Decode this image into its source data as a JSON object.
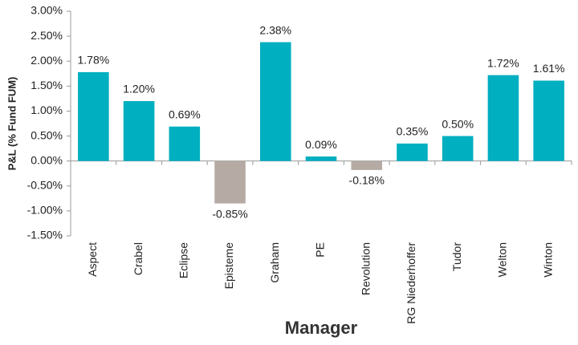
{
  "chart_data": {
    "type": "bar",
    "x_label": "Manager",
    "y_label": "P&L (% Fund FUM)",
    "categories": [
      "Aspect",
      "Crabel",
      "Eclipse",
      "Episteme",
      "Graham",
      "PE",
      "Revolution",
      "RG Niederhoffer",
      "Tudor",
      "Welton",
      "Winton"
    ],
    "values": [
      1.78,
      1.2,
      0.69,
      -0.85,
      2.38,
      0.09,
      -0.18,
      0.35,
      0.5,
      1.72,
      1.61
    ],
    "value_labels": [
      "1.78%",
      "1.20%",
      "0.69%",
      "-0.85%",
      "2.38%",
      "0.09%",
      "-0.18%",
      "0.35%",
      "0.50%",
      "1.72%",
      "1.61%"
    ],
    "color": "#00afc0",
    "negative_color": "#b5aba4",
    "ylim": [
      -1.5,
      3.0
    ],
    "yticks": [
      {
        "value": -1.5,
        "label": "-1.50%"
      },
      {
        "value": -1.0,
        "label": "-1.00%"
      },
      {
        "value": -0.5,
        "label": "-0.50%"
      },
      {
        "value": 0,
        "label": "0.00%"
      },
      {
        "value": 0.5,
        "label": "0.50%"
      },
      {
        "value": 1.0,
        "label": "1.00%"
      },
      {
        "value": 1.5,
        "label": "1.50%"
      },
      {
        "value": 2.0,
        "label": "2.00%"
      },
      {
        "value": 2.5,
        "label": "2.50%"
      },
      {
        "value": 3.0,
        "label": "3.00%"
      }
    ],
    "grid": false
  }
}
